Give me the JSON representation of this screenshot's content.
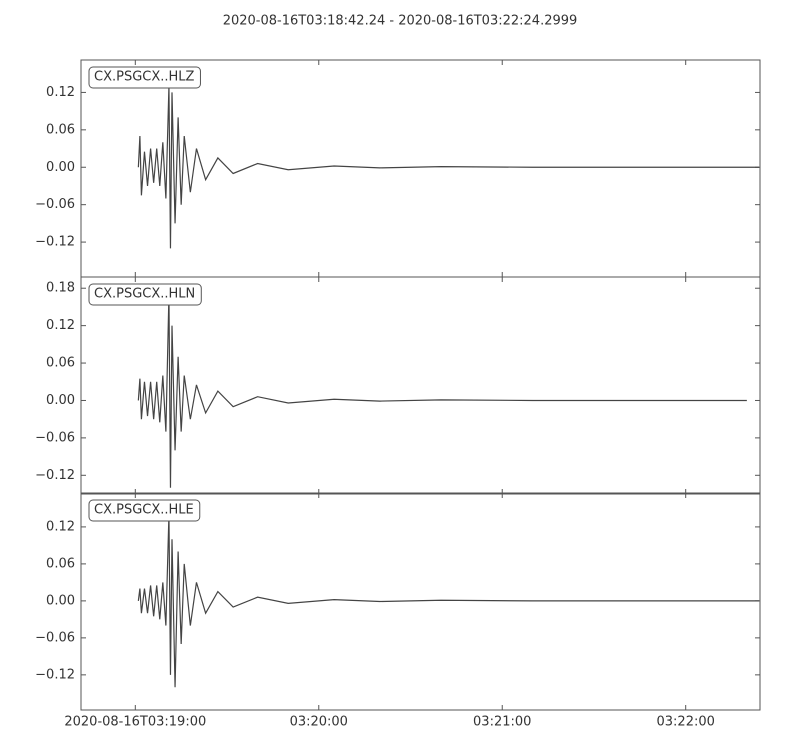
{
  "title": "2020-08-16T03:18:42.24  -  2020-08-16T03:22:24.2999",
  "chart_data": [
    {
      "type": "line",
      "label": "CX.PSGCX..HLZ",
      "color": "#444444",
      "xlim": [
        "2020-08-16T03:18:42.24",
        "2020-08-16T03:22:24.2999"
      ],
      "ylim": [
        -0.176,
        0.172
      ],
      "yticks": [
        {
          "value": 0.12,
          "label": "0.12"
        },
        {
          "value": 0.06,
          "label": "0.06"
        },
        {
          "value": 0,
          "label": "0.00"
        },
        {
          "value": -0.06,
          "label": "−0.06"
        },
        {
          "value": -0.12,
          "label": "−0.12"
        }
      ],
      "x": [
        "2020-08-16T03:19:01.0",
        "2020-08-16T03:19:01.5",
        "2020-08-16T03:19:02.0",
        "2020-08-16T03:19:03.0",
        "2020-08-16T03:19:04.0",
        "2020-08-16T03:19:05.0",
        "2020-08-16T03:19:06.0",
        "2020-08-16T03:19:07.0",
        "2020-08-16T03:19:08.0",
        "2020-08-16T03:19:09.0",
        "2020-08-16T03:19:10.0",
        "2020-08-16T03:19:11.0",
        "2020-08-16T03:19:11.5",
        "2020-08-16T03:19:12.0",
        "2020-08-16T03:19:13.0",
        "2020-08-16T03:19:14.0",
        "2020-08-16T03:19:15.0",
        "2020-08-16T03:19:16.0",
        "2020-08-16T03:19:18.0",
        "2020-08-16T03:19:20.0",
        "2020-08-16T03:19:23.0",
        "2020-08-16T03:19:27.0",
        "2020-08-16T03:19:32.0",
        "2020-08-16T03:19:40.0",
        "2020-08-16T03:19:50.0",
        "2020-08-16T03:20:05.0",
        "2020-08-16T03:20:20.0",
        "2020-08-16T03:20:40.0",
        "2020-08-16T03:21:10.0",
        "2020-08-16T03:22:24.0"
      ],
      "values": [
        0,
        0.05,
        -0.045,
        0.025,
        -0.03,
        0.03,
        -0.025,
        0.03,
        -0.03,
        0.04,
        -0.05,
        0.13,
        -0.13,
        0.12,
        -0.09,
        0.08,
        -0.06,
        0.05,
        -0.04,
        0.03,
        -0.02,
        0.015,
        -0.01,
        0.006,
        -0.004,
        0.002,
        -0.001,
        0.001,
        0,
        0
      ]
    },
    {
      "type": "line",
      "label": "CX.PSGCX..HLN",
      "color": "#444444",
      "xlim": [
        "2020-08-16T03:18:42.24",
        "2020-08-16T03:22:24.2999"
      ],
      "ylim": [
        -0.15,
        0.198
      ],
      "yticks": [
        {
          "value": 0.18,
          "label": "0.18"
        },
        {
          "value": 0.12,
          "label": "0.12"
        },
        {
          "value": 0.06,
          "label": "0.06"
        },
        {
          "value": 0,
          "label": "0.00"
        },
        {
          "value": -0.06,
          "label": "−0.06"
        },
        {
          "value": -0.12,
          "label": "−0.12"
        }
      ],
      "x": [
        "2020-08-16T03:19:01.0",
        "2020-08-16T03:19:01.5",
        "2020-08-16T03:19:02.0",
        "2020-08-16T03:19:03.0",
        "2020-08-16T03:19:04.0",
        "2020-08-16T03:19:05.0",
        "2020-08-16T03:19:06.0",
        "2020-08-16T03:19:07.0",
        "2020-08-16T03:19:08.0",
        "2020-08-16T03:19:09.0",
        "2020-08-16T03:19:10.0",
        "2020-08-16T03:19:11.0",
        "2020-08-16T03:19:11.5",
        "2020-08-16T03:19:12.0",
        "2020-08-16T03:19:13.0",
        "2020-08-16T03:19:14.0",
        "2020-08-16T03:19:15.0",
        "2020-08-16T03:19:16.0",
        "2020-08-16T03:19:18.0",
        "2020-08-16T03:19:20.0",
        "2020-08-16T03:19:23.0",
        "2020-08-16T03:19:27.0",
        "2020-08-16T03:19:32.0",
        "2020-08-16T03:19:40.0",
        "2020-08-16T03:19:50.0",
        "2020-08-16T03:20:05.0",
        "2020-08-16T03:20:20.0",
        "2020-08-16T03:20:40.0",
        "2020-08-16T03:21:10.0",
        "2020-08-16T03:22:20.0"
      ],
      "values": [
        0,
        0.035,
        -0.03,
        0.03,
        -0.025,
        0.03,
        -0.03,
        0.03,
        -0.035,
        0.04,
        -0.05,
        0.17,
        -0.14,
        0.12,
        -0.08,
        0.07,
        -0.05,
        0.04,
        -0.03,
        0.025,
        -0.02,
        0.015,
        -0.01,
        0.006,
        -0.004,
        0.002,
        -0.001,
        0.001,
        0,
        0
      ]
    },
    {
      "type": "line",
      "label": "CX.PSGCX..HLE",
      "color": "#444444",
      "xlim": [
        "2020-08-16T03:18:42.24",
        "2020-08-16T03:22:24.2999"
      ],
      "ylim": [
        -0.177,
        0.175
      ],
      "yticks": [
        {
          "value": 0.12,
          "label": "0.12"
        },
        {
          "value": 0.06,
          "label": "0.06"
        },
        {
          "value": 0,
          "label": "0.00"
        },
        {
          "value": -0.06,
          "label": "−0.06"
        },
        {
          "value": -0.12,
          "label": "−0.12"
        }
      ],
      "xticks": [
        "2020-08-16T03:19:00",
        {
          "value": "2020-08-16T03:20:00",
          "label": "03:20:00"
        },
        {
          "value": "2020-08-16T03:21:00",
          "label": "03:21:00"
        },
        {
          "value": "2020-08-16T03:22:00",
          "label": "03:22:00"
        }
      ],
      "x": [
        "2020-08-16T03:19:01.0",
        "2020-08-16T03:19:01.5",
        "2020-08-16T03:19:02.0",
        "2020-08-16T03:19:03.0",
        "2020-08-16T03:19:04.0",
        "2020-08-16T03:19:05.0",
        "2020-08-16T03:19:06.0",
        "2020-08-16T03:19:07.0",
        "2020-08-16T03:19:08.0",
        "2020-08-16T03:19:09.0",
        "2020-08-16T03:19:10.0",
        "2020-08-16T03:19:11.0",
        "2020-08-16T03:19:11.5",
        "2020-08-16T03:19:12.0",
        "2020-08-16T03:19:13.0",
        "2020-08-16T03:19:14.0",
        "2020-08-16T03:19:15.0",
        "2020-08-16T03:19:16.0",
        "2020-08-16T03:19:18.0",
        "2020-08-16T03:19:20.0",
        "2020-08-16T03:19:23.0",
        "2020-08-16T03:19:27.0",
        "2020-08-16T03:19:32.0",
        "2020-08-16T03:19:40.0",
        "2020-08-16T03:19:50.0",
        "2020-08-16T03:20:05.0",
        "2020-08-16T03:20:20.0",
        "2020-08-16T03:20:40.0",
        "2020-08-16T03:21:10.0",
        "2020-08-16T03:22:24.0"
      ],
      "values": [
        0,
        0.02,
        -0.02,
        0.02,
        -0.02,
        0.025,
        -0.025,
        0.025,
        -0.03,
        0.03,
        -0.04,
        0.14,
        -0.12,
        0.1,
        -0.14,
        0.08,
        -0.07,
        0.06,
        -0.04,
        0.03,
        -0.02,
        0.015,
        -0.01,
        0.006,
        -0.004,
        0.002,
        -0.001,
        0.001,
        0,
        0
      ]
    }
  ]
}
